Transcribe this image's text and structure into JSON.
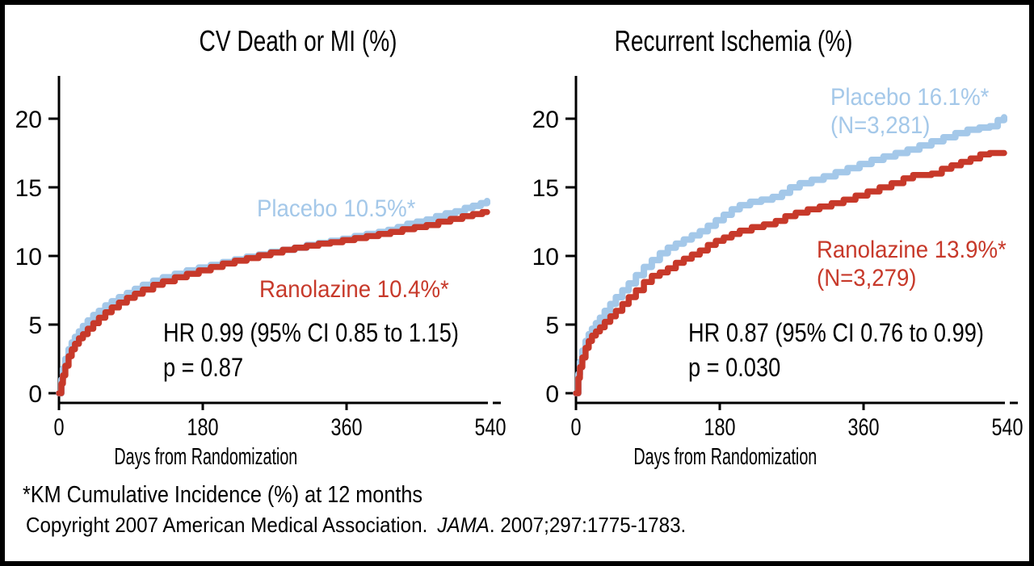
{
  "colors": {
    "placebo": "#A4C8E9",
    "ranolazine": "#C7392A",
    "text": "#000000",
    "frame": "#000000",
    "background": "#FFFFFF"
  },
  "footer": {
    "note": "*KM Cumulative Incidence (%) at 12 months",
    "copyright_prefix": "Copyright 2007 American Medical Association.",
    "journal_name": "JAMA",
    "copyright_suffix": ". 2007;297:1775-1783."
  },
  "chart_data": [
    {
      "type": "line",
      "title": "CV Death or MI (%)",
      "xlabel": "Days from Randomization",
      "ylabel": "",
      "x_ticks": [
        0,
        180,
        360,
        540
      ],
      "y_ticks": [
        0,
        5,
        10,
        15,
        20
      ],
      "xlim": [
        0,
        540
      ],
      "ylim": [
        0,
        22.5
      ],
      "grid": false,
      "step": true,
      "legend_position": "inline-annotations",
      "annotations": {
        "placebo_label": "Placebo 10.5%*",
        "ranolazine_label": "Ranolazine 10.4%*",
        "hr_text": "HR 0.99 (95% CI 0.85 to 1.15)",
        "p_text": "p = 0.87"
      },
      "series": [
        {
          "name": "Placebo",
          "color_key": "placebo",
          "km_12mo_pct": 10.5,
          "points": [
            [
              0,
              0
            ],
            [
              3,
              1.0
            ],
            [
              5,
              1.8
            ],
            [
              8,
              2.5
            ],
            [
              12,
              3.2
            ],
            [
              16,
              3.7
            ],
            [
              20,
              4.1
            ],
            [
              25,
              4.5
            ],
            [
              30,
              4.9
            ],
            [
              36,
              5.3
            ],
            [
              43,
              5.7
            ],
            [
              50,
              6.0
            ],
            [
              58,
              6.4
            ],
            [
              66,
              6.7
            ],
            [
              75,
              7.0
            ],
            [
              85,
              7.3
            ],
            [
              95,
              7.6
            ],
            [
              105,
              7.9
            ],
            [
              118,
              8.2
            ],
            [
              130,
              8.45
            ],
            [
              145,
              8.7
            ],
            [
              160,
              8.95
            ],
            [
              175,
              9.15
            ],
            [
              190,
              9.35
            ],
            [
              205,
              9.55
            ],
            [
              220,
              9.75
            ],
            [
              235,
              9.95
            ],
            [
              250,
              10.1
            ],
            [
              265,
              10.3
            ],
            [
              280,
              10.45
            ],
            [
              295,
              10.6
            ],
            [
              310,
              10.8
            ],
            [
              325,
              10.95
            ],
            [
              340,
              11.1
            ],
            [
              355,
              11.25
            ],
            [
              370,
              11.45
            ],
            [
              385,
              11.6
            ],
            [
              400,
              11.75
            ],
            [
              412,
              11.9
            ],
            [
              424,
              12.1
            ],
            [
              436,
              12.35
            ],
            [
              448,
              12.5
            ],
            [
              460,
              12.65
            ],
            [
              472,
              12.9
            ],
            [
              484,
              13.1
            ],
            [
              496,
              13.25
            ],
            [
              508,
              13.5
            ],
            [
              518,
              13.65
            ],
            [
              528,
              13.85
            ],
            [
              536,
              14.0
            ]
          ]
        },
        {
          "name": "Ranolazine",
          "color_key": "ranolazine",
          "km_12mo_pct": 10.4,
          "points": [
            [
              0,
              0
            ],
            [
              3,
              0.7
            ],
            [
              5,
              1.3
            ],
            [
              8,
              2.0
            ],
            [
              12,
              2.7
            ],
            [
              16,
              3.2
            ],
            [
              20,
              3.6
            ],
            [
              25,
              4.0
            ],
            [
              30,
              4.3
            ],
            [
              36,
              4.7
            ],
            [
              43,
              5.1
            ],
            [
              50,
              5.5
            ],
            [
              58,
              5.9
            ],
            [
              66,
              6.25
            ],
            [
              75,
              6.6
            ],
            [
              85,
              6.95
            ],
            [
              95,
              7.25
            ],
            [
              105,
              7.55
            ],
            [
              118,
              7.9
            ],
            [
              130,
              8.15
            ],
            [
              145,
              8.45
            ],
            [
              160,
              8.7
            ],
            [
              175,
              8.95
            ],
            [
              190,
              9.2
            ],
            [
              205,
              9.45
            ],
            [
              220,
              9.65
            ],
            [
              235,
              9.85
            ],
            [
              250,
              10.05
            ],
            [
              265,
              10.25
            ],
            [
              280,
              10.45
            ],
            [
              295,
              10.6
            ],
            [
              310,
              10.75
            ],
            [
              325,
              10.9
            ],
            [
              340,
              11.0
            ],
            [
              355,
              11.15
            ],
            [
              370,
              11.3
            ],
            [
              385,
              11.45
            ],
            [
              400,
              11.6
            ],
            [
              415,
              11.75
            ],
            [
              430,
              11.95
            ],
            [
              445,
              12.1
            ],
            [
              460,
              12.25
            ],
            [
              475,
              12.5
            ],
            [
              490,
              12.7
            ],
            [
              505,
              12.9
            ],
            [
              518,
              13.05
            ],
            [
              530,
              13.2
            ],
            [
              536,
              13.2
            ]
          ]
        }
      ]
    },
    {
      "type": "line",
      "title": "Recurrent Ischemia (%)",
      "xlabel": "Days from Randomization",
      "ylabel": "",
      "x_ticks": [
        0,
        180,
        360,
        540
      ],
      "y_ticks": [
        0,
        5,
        10,
        15,
        20
      ],
      "xlim": [
        0,
        540
      ],
      "ylim": [
        0,
        22.5
      ],
      "grid": false,
      "step": true,
      "legend_position": "inline-annotations",
      "annotations": {
        "placebo_label": "Placebo 16.1%*",
        "placebo_n": "(N=3,281)",
        "ranolazine_label": "Ranolazine 13.9%*",
        "ranolazine_n": "(N=3,279)",
        "hr_text": "HR 0.87 (95% CI 0.76 to 0.99)",
        "p_text": "p = 0.030"
      },
      "series": [
        {
          "name": "Placebo",
          "color_key": "placebo",
          "km_12mo_pct": 16.1,
          "n": 3281,
          "points": [
            [
              0,
              0
            ],
            [
              3,
              1.4
            ],
            [
              5,
              2.3
            ],
            [
              8,
              3.1
            ],
            [
              12,
              3.8
            ],
            [
              16,
              4.3
            ],
            [
              20,
              4.7
            ],
            [
              25,
              5.1
            ],
            [
              30,
              5.5
            ],
            [
              36,
              6.0
            ],
            [
              43,
              6.5
            ],
            [
              50,
              7.0
            ],
            [
              58,
              7.5
            ],
            [
              66,
              8.0
            ],
            [
              75,
              8.6
            ],
            [
              85,
              9.2
            ],
            [
              95,
              9.7
            ],
            [
              105,
              10.2
            ],
            [
              115,
              10.6
            ],
            [
              125,
              10.9
            ],
            [
              135,
              11.2
            ],
            [
              145,
              11.5
            ],
            [
              155,
              11.8
            ],
            [
              165,
              12.2
            ],
            [
              175,
              12.6
            ],
            [
              185,
              13.0
            ],
            [
              195,
              13.4
            ],
            [
              205,
              13.7
            ],
            [
              218,
              13.95
            ],
            [
              232,
              14.1
            ],
            [
              246,
              14.3
            ],
            [
              258,
              14.6
            ],
            [
              268,
              15.0
            ],
            [
              280,
              15.3
            ],
            [
              295,
              15.55
            ],
            [
              310,
              15.8
            ],
            [
              325,
              16.1
            ],
            [
              340,
              16.4
            ],
            [
              355,
              16.7
            ],
            [
              370,
              17.0
            ],
            [
              385,
              17.25
            ],
            [
              400,
              17.5
            ],
            [
              415,
              17.75
            ],
            [
              430,
              18.05
            ],
            [
              445,
              18.35
            ],
            [
              460,
              18.65
            ],
            [
              475,
              18.95
            ],
            [
              490,
              19.2
            ],
            [
              505,
              19.35
            ],
            [
              518,
              19.45
            ],
            [
              528,
              19.9
            ],
            [
              536,
              20.1
            ]
          ]
        },
        {
          "name": "Ranolazine",
          "color_key": "ranolazine",
          "km_12mo_pct": 13.9,
          "n": 3279,
          "points": [
            [
              0,
              0
            ],
            [
              3,
              1.1
            ],
            [
              5,
              1.9
            ],
            [
              8,
              2.6
            ],
            [
              12,
              3.3
            ],
            [
              16,
              3.8
            ],
            [
              20,
              4.2
            ],
            [
              25,
              4.5
            ],
            [
              30,
              4.8
            ],
            [
              36,
              5.2
            ],
            [
              43,
              5.6
            ],
            [
              50,
              6.0
            ],
            [
              58,
              6.5
            ],
            [
              66,
              7.0
            ],
            [
              75,
              7.5
            ],
            [
              85,
              8.1
            ],
            [
              95,
              8.55
            ],
            [
              105,
              8.8
            ],
            [
              115,
              9.1
            ],
            [
              125,
              9.5
            ],
            [
              135,
              9.8
            ],
            [
              145,
              10.1
            ],
            [
              155,
              10.4
            ],
            [
              165,
              10.8
            ],
            [
              175,
              11.1
            ],
            [
              185,
              11.35
            ],
            [
              195,
              11.6
            ],
            [
              205,
              11.85
            ],
            [
              220,
              12.1
            ],
            [
              235,
              12.3
            ],
            [
              250,
              12.55
            ],
            [
              262,
              12.9
            ],
            [
              275,
              13.15
            ],
            [
              290,
              13.4
            ],
            [
              305,
              13.6
            ],
            [
              320,
              13.85
            ],
            [
              335,
              14.1
            ],
            [
              350,
              14.4
            ],
            [
              365,
              14.7
            ],
            [
              380,
              15.0
            ],
            [
              395,
              15.3
            ],
            [
              410,
              15.65
            ],
            [
              422,
              15.9
            ],
            [
              445,
              16.0
            ],
            [
              458,
              16.35
            ],
            [
              470,
              16.6
            ],
            [
              482,
              16.85
            ],
            [
              494,
              17.1
            ],
            [
              506,
              17.4
            ],
            [
              518,
              17.5
            ],
            [
              536,
              17.5
            ]
          ]
        }
      ]
    }
  ]
}
